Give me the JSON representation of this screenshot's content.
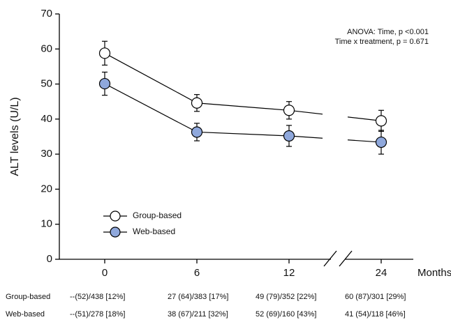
{
  "chart_data": {
    "type": "line",
    "y_label": "ALT levels (U/L)",
    "x_label": "Months",
    "categories": [
      "0",
      "6",
      "12",
      "24"
    ],
    "axis_break": true,
    "ylim": [
      0,
      70
    ],
    "yticks": [
      0,
      10,
      20,
      30,
      40,
      50,
      60,
      70
    ],
    "annotations": [
      "ANOVA: Time, p <0.001",
      "Time x treatment, p = 0.671"
    ],
    "series": [
      {
        "name": "Group-based",
        "color": "#ffffff",
        "values": [
          58.8,
          44.6,
          42.5,
          39.5
        ],
        "errors": [
          3.4,
          2.4,
          2.5,
          3.0
        ]
      },
      {
        "name": "Web-based",
        "color": "#8fa8dc",
        "values": [
          50.1,
          36.3,
          35.2,
          33.4
        ],
        "errors": [
          3.3,
          2.5,
          3.0,
          3.4
        ]
      }
    ],
    "table": {
      "rows": [
        {
          "label": "Group-based",
          "cells": [
            "--(52)/438 [12%]",
            "27 (64)/383 [17%]",
            "49 (79)/352 [22%]",
            "60 (87)/301 [29%]"
          ]
        },
        {
          "label": "Web-based",
          "cells": [
            "--(51)/278 [18%]",
            "38 (67)/211 [32%]",
            "52 (69)/160 [43%]",
            "41 (54)/118 [46%]"
          ]
        }
      ]
    }
  }
}
